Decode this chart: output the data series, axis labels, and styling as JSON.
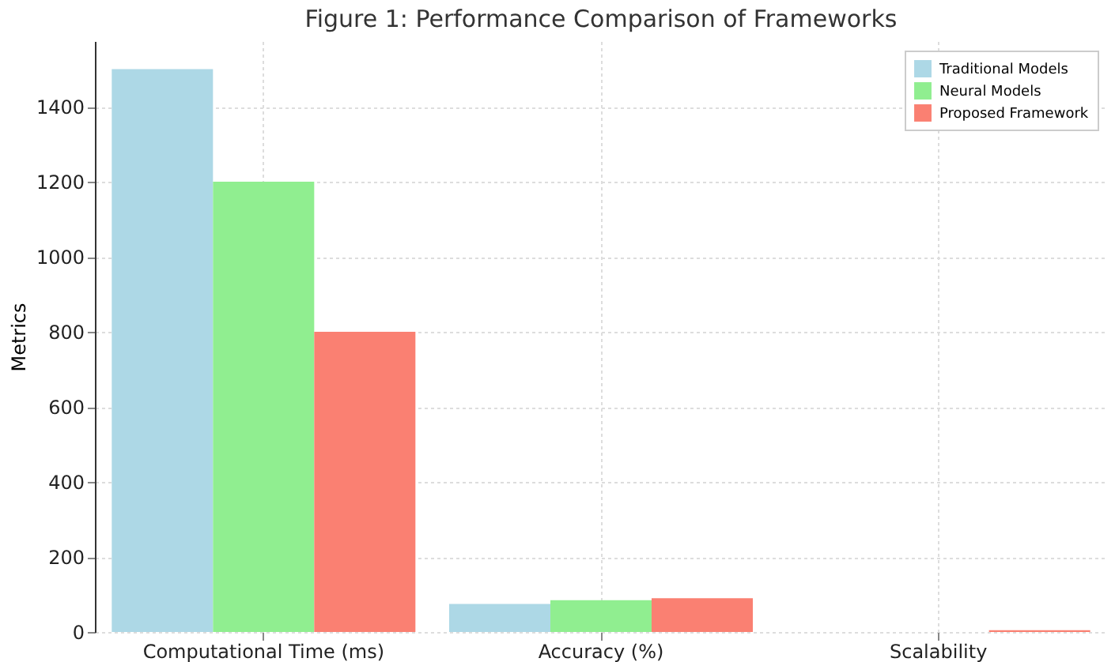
{
  "chart_data": {
    "type": "bar",
    "title": "Figure 1: Performance Comparison of Frameworks",
    "ylabel": "Metrics",
    "categories": [
      "Computational Time (ms)",
      "Accuracy (%)",
      "Scalability"
    ],
    "series": [
      {
        "name": "Traditional Models",
        "color": "#add8e6",
        "values": [
          1500,
          75,
          null
        ]
      },
      {
        "name": "Neural Models",
        "color": "#90ee90",
        "values": [
          1200,
          85,
          null
        ]
      },
      {
        "name": "Proposed Framework",
        "color": "#fa8072",
        "values": [
          800,
          90,
          5
        ]
      }
    ],
    "ylim": [
      0,
      1575
    ],
    "yticks": [
      0,
      200,
      400,
      600,
      800,
      1000,
      1200,
      1400
    ],
    "grid": true,
    "legend": "top right"
  }
}
